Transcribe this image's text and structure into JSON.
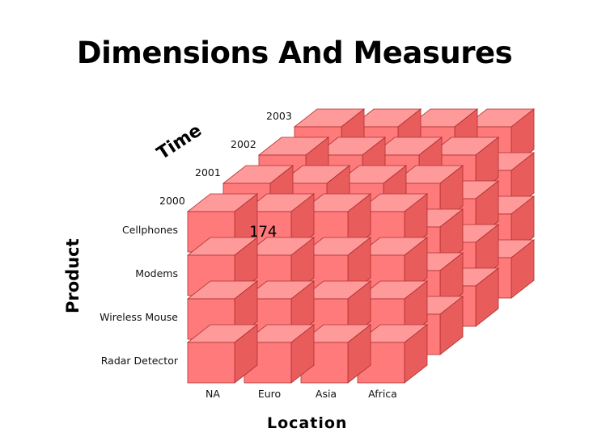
{
  "title": "Dimensions And Measures",
  "cube": {
    "time_axis_label": "Time",
    "product_axis_label": "Product",
    "location_axis_label": "Location",
    "years": [
      "2000",
      "2001",
      "2002",
      "2003"
    ],
    "products": [
      "Cellphones",
      "Modems",
      "Wireless Mouse",
      "Radar Detector"
    ],
    "locations": [
      "NA",
      "Euro",
      "Asia",
      "Africa"
    ],
    "highlight_cell": {
      "product": "Cellphones",
      "location": "Euro",
      "year": "2000",
      "value": "174"
    },
    "colors": {
      "face": "#ff7a7a",
      "top": "#ff9a9a",
      "side": "#e85c5c",
      "stroke": "#b03030"
    }
  }
}
